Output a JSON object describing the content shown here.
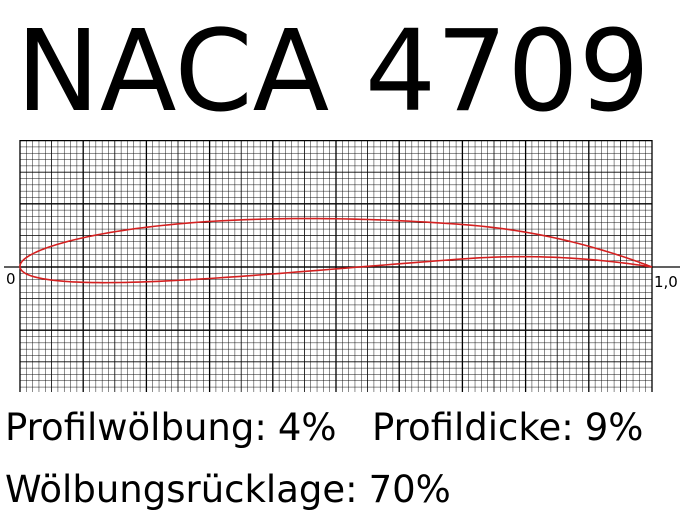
{
  "title": "NACA 4709",
  "axis": {
    "xlim": [
      0,
      {
        "value": 1,
        "label": "1,0"
      }
    ]
  },
  "parameters": [
    {
      "label": "Profilwölbung:",
      "value": 4,
      "value_label": "4%"
    },
    {
      "label": "Profildicke:",
      "value": 9,
      "value_label": "9%"
    },
    {
      "label": "Wölbungsrücklage:",
      "value": 70,
      "value_label": "70%"
    }
  ]
}
